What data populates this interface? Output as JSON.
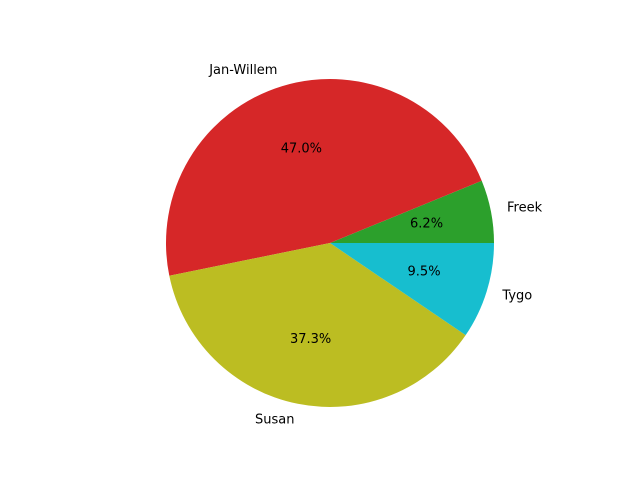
{
  "chart_data": {
    "type": "pie",
    "title": "",
    "start_angle_deg": 0,
    "direction": "counterclockwise",
    "slices": [
      {
        "label": "Freek",
        "value": 6.2,
        "pct_text": "6.2%",
        "color": "#2ca02c"
      },
      {
        "label": "Jan-Willem",
        "value": 47.0,
        "pct_text": "47.0%",
        "color": "#d62728"
      },
      {
        "label": "Susan",
        "value": 37.3,
        "pct_text": "37.3%",
        "color": "#bcbd22"
      },
      {
        "label": "Tygo",
        "value": 9.5,
        "pct_text": "9.5%",
        "color": "#17becf"
      }
    ]
  }
}
